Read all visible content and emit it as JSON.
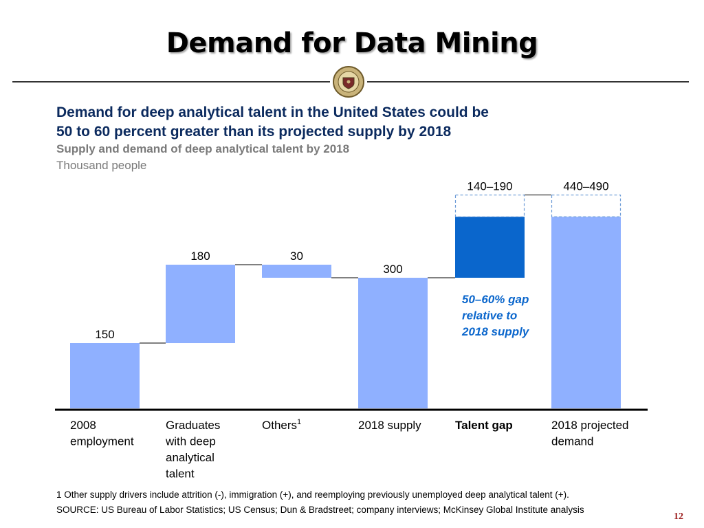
{
  "slide": {
    "title": "Demand for Data Mining",
    "page_number": "12",
    "seal_text": "FLORIDA STATE UNIVERSITY"
  },
  "chart_data": {
    "type": "bar",
    "variant": "waterfall",
    "title": "Demand for deep analytical talent in the United States could be 50 to 60 percent greater than its projected supply by 2018",
    "title_lines": [
      "Demand for deep analytical talent in the United States could be",
      "50 to 60 percent greater than its projected supply by 2018"
    ],
    "subtitle": "Supply and demand of deep analytical talent by 2018",
    "ylabel": "Thousand people",
    "ylim": [
      0,
      490
    ],
    "categories": [
      [
        "2008",
        "employment"
      ],
      [
        "Graduates",
        "with deep",
        "analytical",
        "talent"
      ],
      [
        "Others"
      ],
      [
        "2018 supply"
      ],
      [
        "Talent gap"
      ],
      [
        "2018 projected",
        "demand"
      ]
    ],
    "category_superscripts": [
      "",
      "",
      "1",
      "",
      "",
      ""
    ],
    "bars": [
      {
        "label": "150",
        "base": 0,
        "top": 150,
        "style": "total"
      },
      {
        "label": "180",
        "base": 150,
        "top": 330,
        "style": "increment"
      },
      {
        "label": "30",
        "base": 300,
        "top": 330,
        "style": "decrement"
      },
      {
        "label": "300",
        "base": 0,
        "top": 300,
        "style": "total"
      },
      {
        "label": "140–190",
        "base": 300,
        "top": 440,
        "top_range": 490,
        "style": "gap"
      },
      {
        "label": "440–490",
        "base": 0,
        "top": 440,
        "top_range": 490,
        "style": "total-range"
      }
    ],
    "annotation_lines": [
      "50–60% gap",
      "relative to",
      "2018 supply"
    ],
    "colors": {
      "light": "#8fb0ff",
      "dark": "#0a66cc",
      "annotation": "#0a66cc",
      "dashed": "#6a9ad6"
    }
  },
  "footnote": "1  Other supply drivers include attrition (-), immigration (+), and reemploying previously unemployed deep analytical talent (+).",
  "source": "SOURCE: US Bureau of Labor Statistics; US Census; Dun & Bradstreet; company interviews; McKinsey Global Institute analysis"
}
